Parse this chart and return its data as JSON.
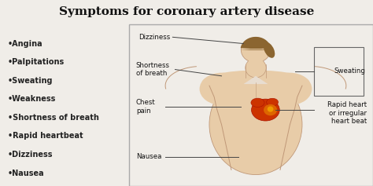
{
  "title": "Symptoms for coronary artery disease",
  "title_fontsize": 11,
  "title_fontweight": "bold",
  "title_color": "#111111",
  "outer_bg": "#f0ede8",
  "title_bg": "#f8f6f2",
  "box_bg": "#e8ddd0",
  "box_border": "#aaaaaa",
  "left_bg": "#f8f6f2",
  "left_bullets": [
    "•Angina",
    "•Palpitations",
    "•Sweating",
    "•Weakness",
    "•Shortness of breath",
    "•Rapid heartbeat",
    "•Dizziness",
    "•Nausea"
  ],
  "bullet_fontsize": 7.0,
  "bullet_fontweight": "bold",
  "bullet_color": "#222222",
  "skin_base": "#d4b090",
  "skin_light": "#e8cca8",
  "skin_dark": "#c09878",
  "hair_color": "#8B6530",
  "line_color": "#444444",
  "line_width": 0.7,
  "ann_fontsize": 6.2,
  "ann_fontweight": "normal",
  "heart_dark": "#aa1100",
  "heart_mid": "#cc3300",
  "heart_orange": "#dd6600",
  "heart_yellow": "#ee9900",
  "figure_width": 4.74,
  "figure_height": 2.37,
  "dpi": 100
}
